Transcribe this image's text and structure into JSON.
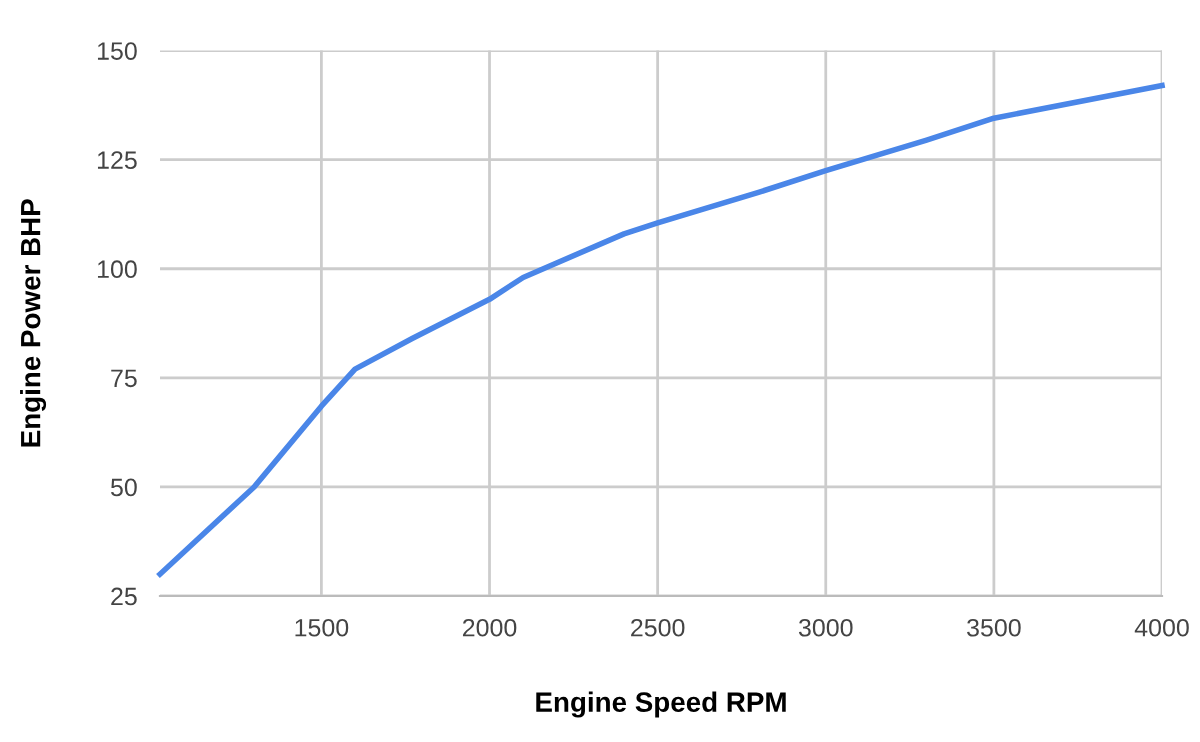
{
  "chart_data": {
    "type": "line",
    "xlabel": "Engine Speed RPM",
    "ylabel": "Engine Power BHP",
    "x": [
      1020,
      1300,
      1500,
      1600,
      1770,
      2000,
      2100,
      2400,
      2500,
      2800,
      3000,
      3300,
      3500,
      4000
    ],
    "series": [
      {
        "color": "#4a86e8",
        "values": [
          30,
          50,
          68.5,
          77,
          84,
          93,
          98,
          108,
          110.5,
          117.5,
          122.5,
          129.5,
          134.5,
          142
        ]
      }
    ],
    "xlim": [
      1020,
      4000
    ],
    "xticks": [
      1500,
      2000,
      2500,
      3000,
      3500,
      4000
    ],
    "ylim": [
      25,
      150
    ],
    "yticks": [
      25,
      50,
      75,
      100,
      125,
      150
    ],
    "grid": true,
    "legend": false,
    "marker": "none",
    "line_style": "solid"
  }
}
